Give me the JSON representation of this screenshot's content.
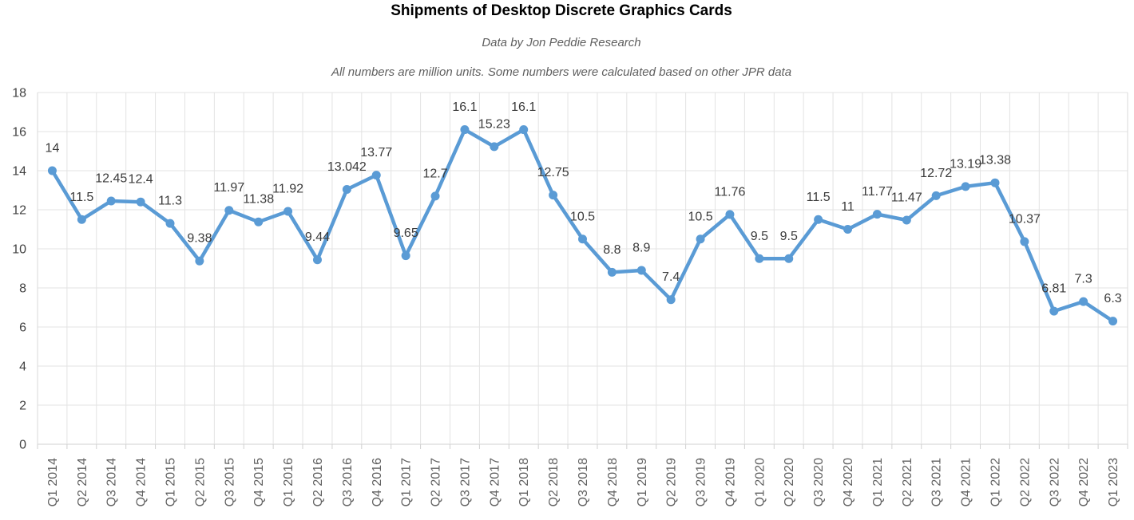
{
  "chart_data": {
    "type": "line",
    "title": "Shipments of Desktop Discrete Graphics Cards",
    "subtitle": "Data by Jon Peddie Research",
    "note": "All numbers are million units. Some numbers were calculated based on other JPR data",
    "unit": "million units",
    "categories": [
      "Q1 2014",
      "Q2 2014",
      "Q3 2014",
      "Q4 2014",
      "Q1 2015",
      "Q2 2015",
      "Q3 2015",
      "Q4 2015",
      "Q1 2016",
      "Q2 2016",
      "Q3 2016",
      "Q4 2016",
      "Q1 2017",
      "Q2 2017",
      "Q3 2017",
      "Q4 2017",
      "Q1 2018",
      "Q2 2018",
      "Q3 2018",
      "Q4 2018",
      "Q1 2019",
      "Q2 2019",
      "Q3 2019",
      "Q4 2019",
      "Q1 2020",
      "Q2 2020",
      "Q3 2020",
      "Q4 2020",
      "Q1 2021",
      "Q2 2021",
      "Q3 2021",
      "Q4 2021",
      "Q1 2022",
      "Q2 2022",
      "Q3 2022",
      "Q4 2022",
      "Q1 2023"
    ],
    "values": [
      14,
      11.5,
      12.45,
      12.4,
      11.3,
      9.38,
      11.97,
      11.38,
      11.92,
      9.44,
      13.042,
      13.77,
      9.65,
      12.7,
      16.1,
      15.23,
      16.1,
      12.75,
      10.5,
      8.8,
      8.9,
      7.4,
      10.5,
      11.76,
      9.5,
      9.5,
      11.5,
      11,
      11.77,
      11.47,
      12.72,
      13.19,
      13.38,
      10.37,
      6.81,
      7.3,
      6.3
    ],
    "value_labels": [
      "14",
      "11.5",
      "12.45",
      "12.4",
      "11.3",
      "9.38",
      "11.97",
      "11.38",
      "11.92",
      "9.44",
      "13.042",
      "13.77",
      "9.65",
      "12.7",
      "16.1",
      "15.23",
      "16.1",
      "12.75",
      "10.5",
      "8.8",
      "8.9",
      "7.4",
      "10.5",
      "11.76",
      "9.5",
      "9.5",
      "11.5",
      "11",
      "11.77",
      "11.47",
      "12.72",
      "13.19",
      "13.38",
      "10.37",
      "6.81",
      "7.3",
      "6.3"
    ],
    "ylim": [
      0,
      18
    ],
    "y_tick_labels": [
      "0",
      "2",
      "4",
      "6",
      "8",
      "10",
      "12",
      "14",
      "16",
      "18"
    ],
    "grid": true,
    "legend": "none",
    "colors": {
      "line": "#5a9bd5",
      "point": "#5a9bd5",
      "grid": "#e3e3e3",
      "border": "#d9d9d9",
      "axis_line": "#d0d0d0",
      "y_label": "#424242",
      "x_label": "#616161",
      "data_label": "#3b3b3b",
      "title": "#000000",
      "subtitle": "#5f5f5f"
    }
  }
}
